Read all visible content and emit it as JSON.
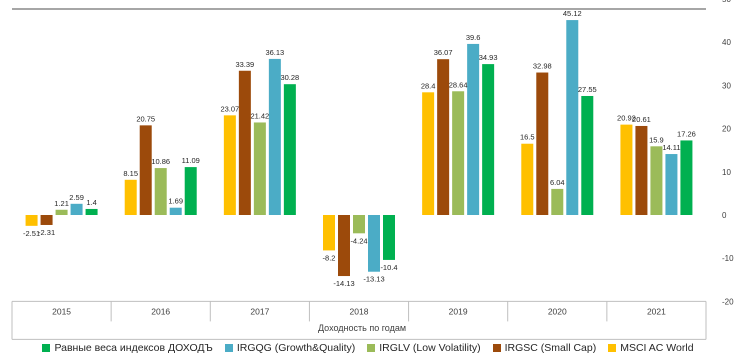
{
  "chart_data": {
    "type": "bar",
    "categories": [
      "2015",
      "2016",
      "2017",
      "2018",
      "2019",
      "2020",
      "2021"
    ],
    "xlabel": "Доходность по годам",
    "ylim": [
      -20,
      50
    ],
    "yticks": [
      -20,
      -10,
      0,
      10,
      20,
      30,
      40,
      50
    ],
    "legend_position": "bottom",
    "grid": false,
    "series": [
      {
        "name": "MSCI AC World",
        "color": "#FFC000",
        "values": [
          -2.51,
          8.15,
          23.07,
          -8.2,
          28.4,
          16.5,
          20.92
        ]
      },
      {
        "name": "IRGSC (Small Cap)",
        "color": "#9C4A0B",
        "values": [
          -2.31,
          20.75,
          33.39,
          -14.13,
          36.07,
          32.98,
          20.61
        ]
      },
      {
        "name": "IRGLV (Low Volatility)",
        "color": "#9BBB59",
        "values": [
          1.21,
          10.86,
          21.42,
          -4.24,
          28.64,
          6.04,
          15.9
        ]
      },
      {
        "name": "IRGQG (Growth&Quality)",
        "color": "#4BACC6",
        "values": [
          2.59,
          1.69,
          36.13,
          -13.13,
          39.6,
          45.12,
          14.11
        ]
      },
      {
        "name": "Равные веса индексов ДОХОДЪ",
        "color": "#00B050",
        "values": [
          1.4,
          11.09,
          30.28,
          -10.4,
          34.93,
          27.55,
          17.26
        ]
      }
    ],
    "data_labels": [
      [
        "-2.51",
        "8.15",
        "23.07",
        "-8.2",
        "28.4",
        "16.5",
        "20.92"
      ],
      [
        "-2.31",
        "20.75",
        "33.39",
        "-14.13",
        "36.07",
        "32.98",
        "20.61"
      ],
      [
        "1.21",
        "10.86",
        "21.42",
        "-4.24",
        "28.64",
        "6.04",
        "15.9"
      ],
      [
        "2.59",
        "1.69",
        "36.13",
        "-13.13",
        "39.6",
        "45.12",
        "14.11"
      ],
      [
        "1.4",
        "11.09",
        "30.28",
        "-10.4",
        "34.93",
        "27.55",
        "17.26"
      ]
    ],
    "legend_order": [
      4,
      3,
      2,
      1,
      0
    ]
  }
}
